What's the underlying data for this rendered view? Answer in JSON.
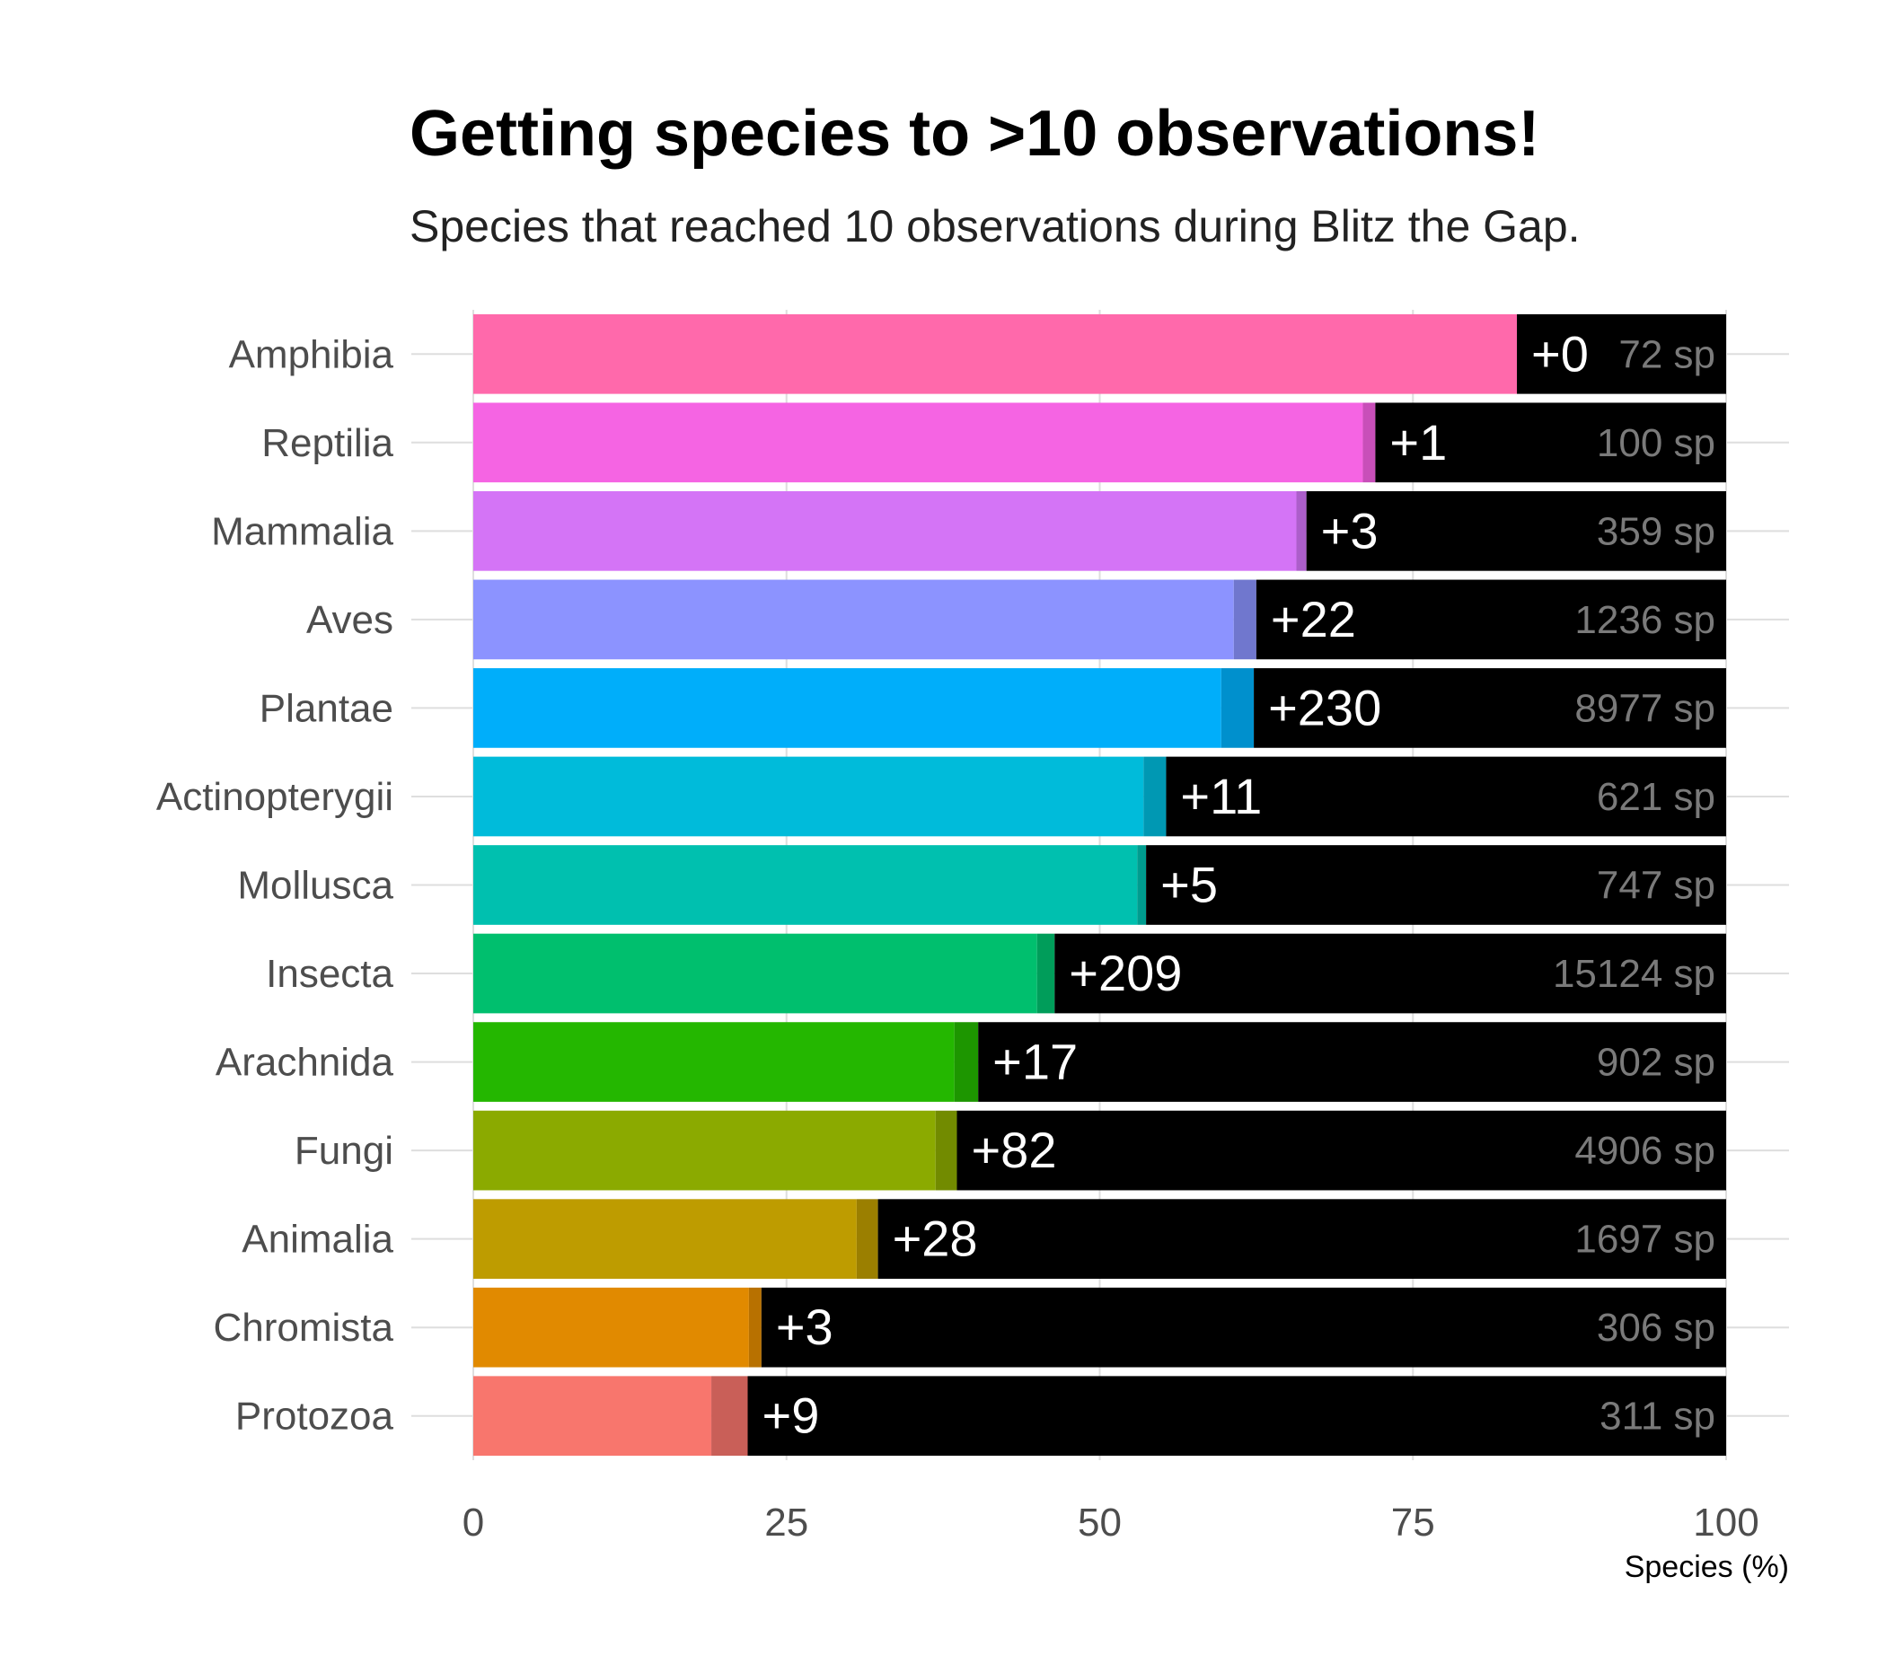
{
  "chart_data": {
    "type": "bar",
    "orientation": "horizontal",
    "stacked": true,
    "title": "Getting species to >10 observations!",
    "subtitle": "Species that reached 10 observations during Blitz the Gap.",
    "xlabel": "Species (%)",
    "ylabel": "",
    "xlim": [
      0,
      100
    ],
    "x_ticks": [
      "0",
      "25",
      "50",
      "75",
      "100"
    ],
    "grid": true,
    "categories": [
      "Amphibia",
      "Reptilia",
      "Mammalia",
      "Aves",
      "Plantae",
      "Actinopterygii",
      "Mollusca",
      "Insecta",
      "Arachnida",
      "Fungi",
      "Animalia",
      "Chromista",
      "Protozoa"
    ],
    "series": [
      {
        "values": [
          83.3,
          71.0,
          65.7,
          60.7,
          59.7,
          53.5,
          53.0,
          45.0,
          38.4,
          36.9,
          30.6,
          22.0,
          19.0
        ]
      },
      {
        "values": [
          0.0,
          1.0,
          0.8,
          1.8,
          2.6,
          1.8,
          0.7,
          1.4,
          1.9,
          1.7,
          1.7,
          1.0,
          2.9
        ]
      },
      {
        "values": [
          16.7,
          28.0,
          33.5,
          37.5,
          37.7,
          44.7,
          46.3,
          53.6,
          59.7,
          61.4,
          67.7,
          77.0,
          78.1
        ]
      }
    ],
    "gained_labels": [
      "+0",
      "+1",
      "+3",
      "+22",
      "+230",
      "+11",
      "+5",
      "+209",
      "+17",
      "+82",
      "+28",
      "+3",
      "+9"
    ],
    "total_labels": [
      "72 sp",
      "100 sp",
      "359 sp",
      "1236 sp",
      "8977 sp",
      "621 sp",
      "747 sp",
      "15124 sp",
      "902 sp",
      "4906 sp",
      "1697 sp",
      "306 sp",
      "311 sp"
    ],
    "colors": [
      "#FF69AB",
      "#F564E3",
      "#D474F6",
      "#8C93FF",
      "#00AEFA",
      "#00BBDA",
      "#00C0AF",
      "#00BF6E",
      "#24B700",
      "#8BAA00",
      "#BE9C00",
      "#E18A00",
      "#F8766D"
    ],
    "gained_colors": [
      "#D4568D",
      "#C84FB9",
      "#AC5ECA",
      "#7077CE",
      "#0090CD",
      "#0098B3",
      "#009C8F",
      "#009D5A",
      "#1D9600",
      "#728B00",
      "#9B7F00",
      "#B87100",
      "#C95F58"
    ],
    "remainder_color": "#000000"
  }
}
